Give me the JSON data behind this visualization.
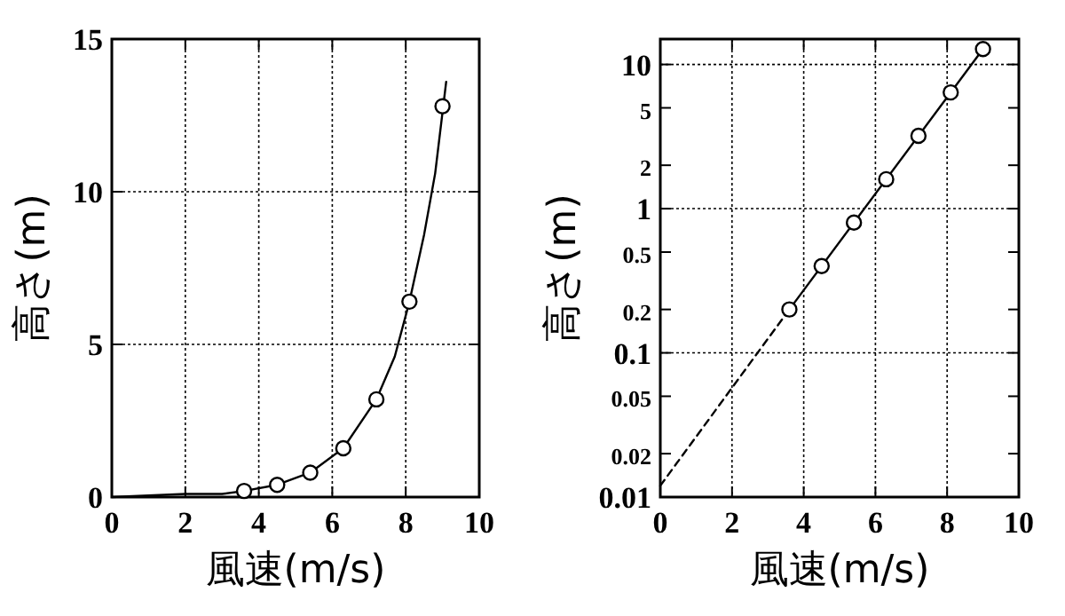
{
  "chart_data": [
    {
      "type": "scatter",
      "xlabel": "風速(m/s)",
      "ylabel": "高さ(m)",
      "xlim": [
        0,
        10
      ],
      "ylim": [
        0,
        15
      ],
      "xticks": [
        0,
        2,
        4,
        6,
        8,
        10
      ],
      "yticks": [
        0,
        5,
        10,
        15
      ],
      "grid": true,
      "series": [
        {
          "type": "line",
          "color": "#000000",
          "line_style": "solid",
          "x": [
            0,
            2,
            3,
            3.6,
            4.5,
            5.4,
            6.3,
            7.2,
            7.7,
            8.1,
            8.5,
            8.8,
            9.0,
            9.1
          ],
          "values": [
            0,
            0.1,
            0.1,
            0.2,
            0.4,
            0.8,
            1.6,
            3.2,
            4.6,
            6.4,
            8.6,
            10.6,
            12.6,
            13.6
          ]
        },
        {
          "type": "scatter",
          "color": "#000000",
          "marker": "circle",
          "x": [
            3.6,
            4.5,
            5.4,
            6.3,
            7.2,
            8.1,
            9.0
          ],
          "values": [
            0.2,
            0.4,
            0.8,
            1.6,
            3.2,
            6.4,
            12.8
          ]
        }
      ]
    },
    {
      "type": "scatter",
      "xlabel": "風速(m/s)",
      "ylabel": "高さ(m)",
      "log": "y",
      "xlim": [
        0,
        10
      ],
      "ylim": [
        0.01,
        15
      ],
      "xticks": [
        0,
        2,
        4,
        6,
        8,
        10
      ],
      "yticks": [
        0.01,
        0.02,
        0.05,
        0.1,
        0.2,
        0.5,
        1,
        2,
        5,
        10
      ],
      "grid": true,
      "series": [
        {
          "type": "line",
          "color": "#000000",
          "line_style": "dashed",
          "x": [
            0,
            3.6
          ],
          "values": [
            0.012,
            0.2
          ]
        },
        {
          "type": "line",
          "color": "#000000",
          "line_style": "solid",
          "x": [
            3.6,
            9.0
          ],
          "values": [
            0.2,
            12.8
          ]
        },
        {
          "type": "scatter",
          "color": "#000000",
          "marker": "circle",
          "x": [
            3.6,
            4.5,
            5.4,
            6.3,
            7.2,
            8.1,
            9.0
          ],
          "values": [
            0.2,
            0.4,
            0.8,
            1.6,
            3.2,
            6.4,
            12.8
          ]
        }
      ]
    }
  ]
}
